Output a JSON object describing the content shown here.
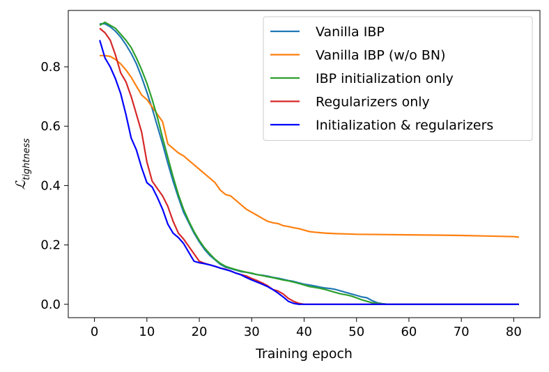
{
  "chart_data": {
    "type": "line",
    "xlabel": "Training epoch",
    "ylabel_main": "ℒ",
    "ylabel_sub": "tightness",
    "xlim": [
      -5,
      85
    ],
    "ylim": [
      -0.045,
      0.99
    ],
    "xticks": [
      0,
      10,
      20,
      30,
      40,
      50,
      60,
      70,
      80
    ],
    "xtick_labels": [
      "0",
      "10",
      "20",
      "30",
      "40",
      "50",
      "60",
      "70",
      "80"
    ],
    "yticks": [
      0.0,
      0.2,
      0.4,
      0.6,
      0.8
    ],
    "ytick_labels": [
      "0.0",
      "0.2",
      "0.4",
      "0.6",
      "0.8"
    ],
    "grid": false,
    "legend_position": "top-right",
    "series": [
      {
        "name": "Vanilla IBP",
        "color": "#1f77b4",
        "points": [
          [
            1,
            0.945
          ],
          [
            2,
            0.945
          ],
          [
            3,
            0.935
          ],
          [
            4,
            0.92
          ],
          [
            5,
            0.9
          ],
          [
            6,
            0.875
          ],
          [
            7,
            0.845
          ],
          [
            8,
            0.81
          ],
          [
            9,
            0.765
          ],
          [
            10,
            0.715
          ],
          [
            11,
            0.66
          ],
          [
            12,
            0.6
          ],
          [
            13,
            0.54
          ],
          [
            14,
            0.475
          ],
          [
            15,
            0.415
          ],
          [
            16,
            0.36
          ],
          [
            17,
            0.31
          ],
          [
            18,
            0.275
          ],
          [
            19,
            0.24
          ],
          [
            20,
            0.21
          ],
          [
            21,
            0.185
          ],
          [
            22,
            0.165
          ],
          [
            23,
            0.15
          ],
          [
            24,
            0.135
          ],
          [
            25,
            0.125
          ],
          [
            26,
            0.12
          ],
          [
            27,
            0.115
          ],
          [
            28,
            0.11
          ],
          [
            29,
            0.108
          ],
          [
            30,
            0.104
          ],
          [
            31,
            0.1
          ],
          [
            32,
            0.098
          ],
          [
            33,
            0.095
          ],
          [
            34,
            0.091
          ],
          [
            35,
            0.088
          ],
          [
            36,
            0.084
          ],
          [
            37,
            0.08
          ],
          [
            38,
            0.077
          ],
          [
            39,
            0.072
          ],
          [
            40,
            0.068
          ],
          [
            41,
            0.065
          ],
          [
            42,
            0.062
          ],
          [
            43,
            0.058
          ],
          [
            44,
            0.055
          ],
          [
            45,
            0.053
          ],
          [
            46,
            0.05
          ],
          [
            47,
            0.045
          ],
          [
            48,
            0.04
          ],
          [
            49,
            0.035
          ],
          [
            50,
            0.03
          ],
          [
            51,
            0.025
          ],
          [
            52,
            0.022
          ],
          [
            53,
            0.012
          ],
          [
            54,
            0.005
          ],
          [
            55,
            0.002
          ],
          [
            56,
            0.0
          ],
          [
            60,
            0.0
          ],
          [
            70,
            0.0
          ],
          [
            81,
            0.0
          ]
        ]
      },
      {
        "name": "Vanilla IBP (w/o BN)",
        "color": "#ff7f0e",
        "points": [
          [
            1,
            0.838
          ],
          [
            2,
            0.838
          ],
          [
            3,
            0.835
          ],
          [
            4,
            0.825
          ],
          [
            5,
            0.81
          ],
          [
            6,
            0.79
          ],
          [
            7,
            0.765
          ],
          [
            8,
            0.735
          ],
          [
            9,
            0.705
          ],
          [
            10,
            0.69
          ],
          [
            11,
            0.665
          ],
          [
            12,
            0.64
          ],
          [
            13,
            0.615
          ],
          [
            14,
            0.54
          ],
          [
            15,
            0.525
          ],
          [
            16,
            0.51
          ],
          [
            17,
            0.5
          ],
          [
            18,
            0.485
          ],
          [
            19,
            0.47
          ],
          [
            20,
            0.455
          ],
          [
            21,
            0.44
          ],
          [
            22,
            0.425
          ],
          [
            23,
            0.41
          ],
          [
            24,
            0.385
          ],
          [
            25,
            0.37
          ],
          [
            26,
            0.365
          ],
          [
            27,
            0.35
          ],
          [
            28,
            0.335
          ],
          [
            29,
            0.32
          ],
          [
            30,
            0.31
          ],
          [
            31,
            0.3
          ],
          [
            32,
            0.29
          ],
          [
            33,
            0.28
          ],
          [
            34,
            0.275
          ],
          [
            35,
            0.272
          ],
          [
            36,
            0.265
          ],
          [
            37,
            0.262
          ],
          [
            38,
            0.258
          ],
          [
            39,
            0.255
          ],
          [
            40,
            0.25
          ],
          [
            41,
            0.245
          ],
          [
            42,
            0.243
          ],
          [
            44,
            0.24
          ],
          [
            46,
            0.238
          ],
          [
            48,
            0.237
          ],
          [
            50,
            0.236
          ],
          [
            55,
            0.235
          ],
          [
            60,
            0.234
          ],
          [
            65,
            0.233
          ],
          [
            70,
            0.232
          ],
          [
            75,
            0.23
          ],
          [
            80,
            0.228
          ],
          [
            81,
            0.226
          ]
        ]
      },
      {
        "name": "IBP initialization only",
        "color": "#2ca02c",
        "points": [
          [
            1,
            0.94
          ],
          [
            2,
            0.95
          ],
          [
            3,
            0.94
          ],
          [
            4,
            0.93
          ],
          [
            5,
            0.91
          ],
          [
            6,
            0.89
          ],
          [
            7,
            0.865
          ],
          [
            8,
            0.83
          ],
          [
            9,
            0.79
          ],
          [
            10,
            0.745
          ],
          [
            11,
            0.69
          ],
          [
            12,
            0.63
          ],
          [
            13,
            0.56
          ],
          [
            14,
            0.495
          ],
          [
            15,
            0.43
          ],
          [
            16,
            0.37
          ],
          [
            17,
            0.32
          ],
          [
            18,
            0.28
          ],
          [
            19,
            0.245
          ],
          [
            20,
            0.215
          ],
          [
            21,
            0.19
          ],
          [
            22,
            0.17
          ],
          [
            23,
            0.152
          ],
          [
            24,
            0.138
          ],
          [
            25,
            0.128
          ],
          [
            26,
            0.122
          ],
          [
            27,
            0.117
          ],
          [
            28,
            0.112
          ],
          [
            29,
            0.108
          ],
          [
            30,
            0.105
          ],
          [
            31,
            0.1
          ],
          [
            32,
            0.097
          ],
          [
            33,
            0.093
          ],
          [
            34,
            0.09
          ],
          [
            35,
            0.086
          ],
          [
            36,
            0.082
          ],
          [
            37,
            0.079
          ],
          [
            38,
            0.075
          ],
          [
            39,
            0.07
          ],
          [
            40,
            0.065
          ],
          [
            41,
            0.06
          ],
          [
            42,
            0.057
          ],
          [
            43,
            0.054
          ],
          [
            44,
            0.05
          ],
          [
            45,
            0.045
          ],
          [
            46,
            0.04
          ],
          [
            47,
            0.035
          ],
          [
            48,
            0.032
          ],
          [
            49,
            0.028
          ],
          [
            50,
            0.022
          ],
          [
            51,
            0.015
          ],
          [
            52,
            0.01
          ],
          [
            53,
            0.005
          ],
          [
            54,
            0.003
          ],
          [
            55,
            0.001
          ],
          [
            56,
            0.0
          ],
          [
            60,
            0.0
          ],
          [
            70,
            0.0
          ],
          [
            81,
            0.0
          ]
        ]
      },
      {
        "name": "Regularizers only",
        "color": "#d62728",
        "points": [
          [
            1,
            0.93
          ],
          [
            2,
            0.915
          ],
          [
            3,
            0.89
          ],
          [
            4,
            0.84
          ],
          [
            5,
            0.78
          ],
          [
            6,
            0.75
          ],
          [
            7,
            0.7
          ],
          [
            8,
            0.64
          ],
          [
            9,
            0.58
          ],
          [
            10,
            0.48
          ],
          [
            11,
            0.415
          ],
          [
            12,
            0.39
          ],
          [
            13,
            0.365
          ],
          [
            14,
            0.33
          ],
          [
            15,
            0.28
          ],
          [
            16,
            0.24
          ],
          [
            17,
            0.22
          ],
          [
            18,
            0.195
          ],
          [
            19,
            0.17
          ],
          [
            20,
            0.145
          ],
          [
            21,
            0.138
          ],
          [
            22,
            0.133
          ],
          [
            23,
            0.128
          ],
          [
            24,
            0.122
          ],
          [
            25,
            0.118
          ],
          [
            26,
            0.112
          ],
          [
            27,
            0.105
          ],
          [
            28,
            0.1
          ],
          [
            29,
            0.095
          ],
          [
            30,
            0.087
          ],
          [
            31,
            0.08
          ],
          [
            32,
            0.072
          ],
          [
            33,
            0.063
          ],
          [
            34,
            0.05
          ],
          [
            35,
            0.045
          ],
          [
            36,
            0.035
          ],
          [
            37,
            0.02
          ],
          [
            38,
            0.01
          ],
          [
            39,
            0.003
          ],
          [
            40,
            0.0
          ],
          [
            50,
            0.0
          ],
          [
            60,
            0.0
          ],
          [
            70,
            0.0
          ],
          [
            81,
            0.0
          ]
        ]
      },
      {
        "name": "Initialization & regularizers",
        "color": "#0000ff",
        "points": [
          [
            1,
            0.89
          ],
          [
            2,
            0.83
          ],
          [
            3,
            0.8
          ],
          [
            4,
            0.76
          ],
          [
            5,
            0.71
          ],
          [
            6,
            0.64
          ],
          [
            7,
            0.56
          ],
          [
            8,
            0.52
          ],
          [
            9,
            0.46
          ],
          [
            10,
            0.41
          ],
          [
            11,
            0.395
          ],
          [
            12,
            0.36
          ],
          [
            13,
            0.32
          ],
          [
            14,
            0.27
          ],
          [
            15,
            0.24
          ],
          [
            16,
            0.225
          ],
          [
            17,
            0.205
          ],
          [
            18,
            0.175
          ],
          [
            19,
            0.145
          ],
          [
            20,
            0.14
          ],
          [
            21,
            0.137
          ],
          [
            22,
            0.133
          ],
          [
            23,
            0.128
          ],
          [
            24,
            0.122
          ],
          [
            25,
            0.117
          ],
          [
            26,
            0.112
          ],
          [
            27,
            0.105
          ],
          [
            28,
            0.099
          ],
          [
            29,
            0.09
          ],
          [
            30,
            0.082
          ],
          [
            31,
            0.075
          ],
          [
            32,
            0.068
          ],
          [
            33,
            0.06
          ],
          [
            34,
            0.05
          ],
          [
            35,
            0.038
          ],
          [
            36,
            0.025
          ],
          [
            37,
            0.01
          ],
          [
            38,
            0.003
          ],
          [
            39,
            0.0
          ],
          [
            40,
            0.0
          ],
          [
            50,
            0.0
          ],
          [
            60,
            0.0
          ],
          [
            70,
            0.0
          ],
          [
            81,
            0.0
          ]
        ]
      }
    ]
  }
}
